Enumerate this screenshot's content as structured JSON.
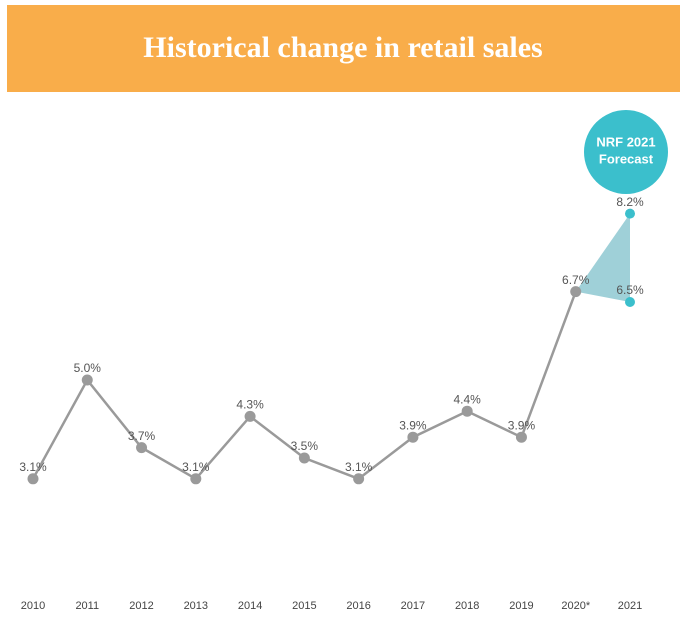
{
  "chart_data": {
    "type": "line",
    "title": "Historical change in retail sales",
    "categories": [
      "2010",
      "2011",
      "2012",
      "2013",
      "2014",
      "2015",
      "2016",
      "2017",
      "2018",
      "2019",
      "2020*",
      "2021"
    ],
    "values": [
      3.1,
      5.0,
      3.7,
      3.1,
      4.3,
      3.5,
      3.1,
      3.9,
      4.4,
      3.9,
      6.7,
      null
    ],
    "value_labels": [
      "3.1%",
      "5.0%",
      "3.7%",
      "3.1%",
      "4.3%",
      "3.5%",
      "3.1%",
      "3.9%",
      "4.4%",
      "3.9%",
      "6.7%",
      null
    ],
    "color": "#9a9a9a",
    "forecast": {
      "label": [
        "NRF 2021",
        "Forecast"
      ],
      "values": [
        8.2,
        6.5
      ],
      "value_labels": [
        "8.2%",
        "6.5%"
      ],
      "color": "#3bbfcc",
      "fill": "#9fd0d8"
    }
  }
}
